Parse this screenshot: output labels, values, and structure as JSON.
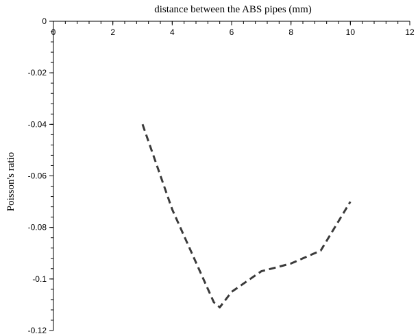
{
  "chart_data": {
    "type": "line",
    "xlabel": "distance between the ABS pipes (mm)",
    "ylabel": "Poisson's ratio",
    "xlim": [
      0,
      12
    ],
    "ylim": [
      -0.12,
      0
    ],
    "x_ticks": [
      "0",
      "2",
      "4",
      "6",
      "8",
      "10",
      "12"
    ],
    "y_ticks": [
      "0",
      "-0.02",
      "-0.04",
      "-0.06",
      "-0.08",
      "-0.1",
      "-0.12"
    ],
    "x_axis_position": "top",
    "grid": false,
    "legend": "none",
    "series": [
      {
        "style": "dashed",
        "color": "#3a3a3a",
        "x": [
          3,
          4,
          5.4,
          5.6,
          6,
          7,
          8,
          9,
          10
        ],
        "y": [
          -0.04,
          -0.073,
          -0.109,
          -0.111,
          -0.105,
          -0.097,
          -0.094,
          -0.089,
          -0.07
        ]
      }
    ]
  }
}
